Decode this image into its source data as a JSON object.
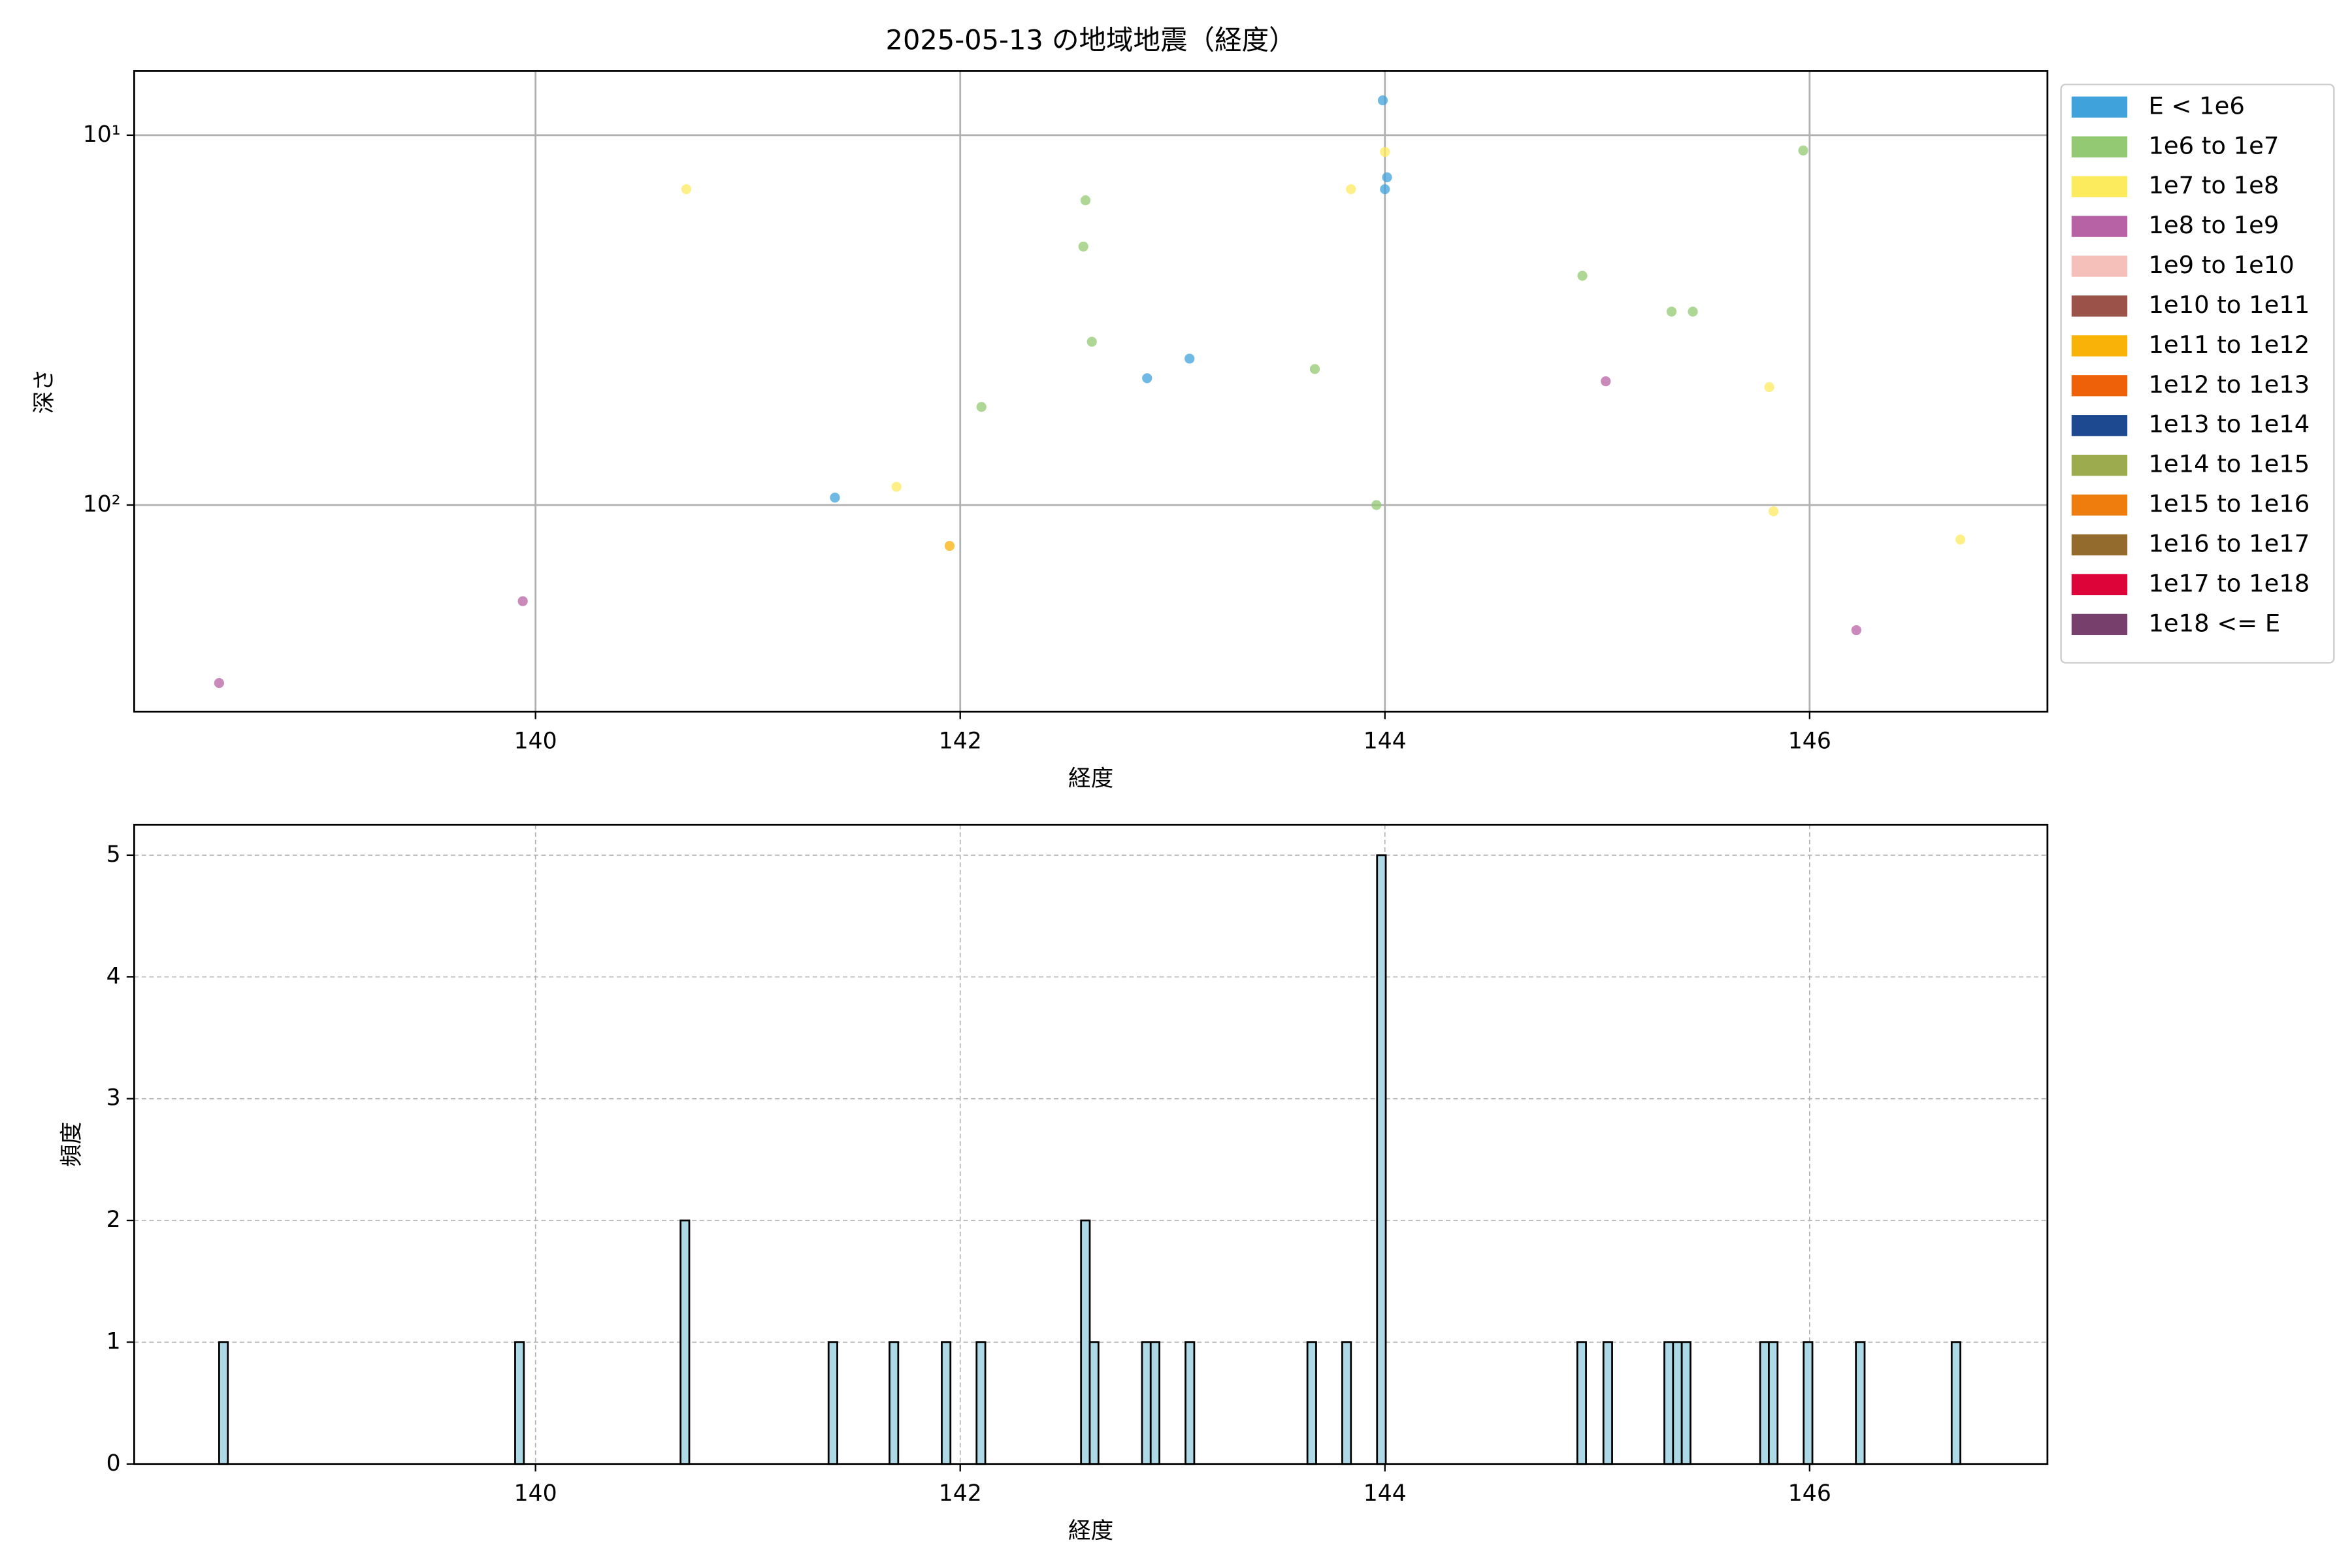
{
  "chart_data": [
    {
      "type": "scatter",
      "title": "2025-05-13 の地域地震（経度）",
      "xlabel": "経度",
      "ylabel": "深さ",
      "xlim": [
        138.11,
        147.12
      ],
      "ylim": [
        6.7,
        362
      ],
      "log_y": true,
      "y_inverted": true,
      "xticks": [
        140,
        142,
        144,
        146
      ],
      "yticks": [
        {
          "value": 10,
          "label": "10¹"
        },
        {
          "value": 100,
          "label": "10²"
        }
      ],
      "grid": true,
      "legend": "outside right",
      "series": [
        {
          "name": "E < 1e6",
          "color": "#3fa2db",
          "x": [
            141.41,
            142.88,
            143.08,
            143.99,
            144.01,
            144.0
          ],
          "values": [
            95.5,
            45.4,
            40.2,
            8.05,
            13.0,
            14.0
          ]
        },
        {
          "name": "1e6 to 1e7",
          "color": "#93c972",
          "x": [
            142.1,
            142.59,
            142.58,
            142.62,
            143.67,
            143.96,
            144.93,
            145.35,
            145.45,
            145.97
          ],
          "values": [
            54.3,
            15.0,
            20.0,
            36.2,
            42.9,
            100,
            24.0,
            30.0,
            30.0,
            11.0
          ]
        },
        {
          "name": "1e7 to 1e8",
          "color": "#fdeb5e",
          "x": [
            140.71,
            141.7,
            143.84,
            144.0,
            145.81,
            145.83,
            146.71
          ],
          "values": [
            14.0,
            89.3,
            14.0,
            11.1,
            48.0,
            104,
            124
          ]
        },
        {
          "name": "1e8 to 1e9",
          "color": "#b762a4",
          "x": [
            138.51,
            139.94,
            145.04,
            146.22
          ],
          "values": [
            303,
            182,
            46.3,
            218
          ]
        },
        {
          "name": "1e9 to 1e10",
          "color": "#f5c0b9",
          "x": [],
          "values": []
        },
        {
          "name": "1e10 to 1e11",
          "color": "#9a5249",
          "x": [],
          "values": []
        },
        {
          "name": "1e11 to 1e12",
          "color": "#f8b208",
          "x": [
            141.95
          ],
          "values": [
            129
          ]
        },
        {
          "name": "1e12 to 1e13",
          "color": "#ee6108",
          "x": [],
          "values": []
        },
        {
          "name": "1e13 to 1e14",
          "color": "#1c4990",
          "x": [],
          "values": []
        },
        {
          "name": "1e14 to 1e15",
          "color": "#9bab4e",
          "x": [],
          "values": []
        },
        {
          "name": "1e15 to 1e16",
          "color": "#ee7d0d",
          "x": [],
          "values": []
        },
        {
          "name": "1e16 to 1e17",
          "color": "#936b2c",
          "x": [],
          "values": []
        },
        {
          "name": "1e17 to 1e18",
          "color": "#dc0439",
          "x": [],
          "values": []
        },
        {
          "name": "1e18 <= E",
          "color": "#773f6c",
          "x": [],
          "values": []
        }
      ]
    },
    {
      "type": "histogram",
      "xlabel": "経度",
      "ylabel": "頻度",
      "xlim": [
        138.11,
        147.12
      ],
      "ylim": [
        0,
        5.25
      ],
      "xticks": [
        140,
        142,
        144,
        146
      ],
      "yticks": [
        0,
        1,
        2,
        3,
        4,
        5
      ],
      "grid": true,
      "color": "#add8e6",
      "edgecolor": "#000000",
      "bins": [
        138.51,
        138.551,
        139.904,
        139.945,
        140.683,
        140.724,
        141.38,
        141.421,
        141.667,
        141.708,
        141.913,
        141.954,
        142.077,
        142.118,
        142.569,
        142.61,
        142.651,
        142.856,
        142.897,
        142.938,
        143.061,
        143.102,
        143.635,
        143.676,
        143.799,
        143.84,
        143.963,
        144.004,
        144.906,
        144.947,
        145.029,
        145.07,
        145.316,
        145.357,
        145.398,
        145.439,
        145.767,
        145.808,
        145.849,
        145.972,
        146.013,
        146.218,
        146.259,
        146.669,
        146.71
      ],
      "counts": [
        1,
        0,
        1,
        0,
        2,
        0,
        1,
        0,
        1,
        0,
        1,
        0,
        1,
        0,
        2,
        1,
        0,
        1,
        1,
        0,
        1,
        0,
        1,
        0,
        1,
        0,
        5,
        0,
        1,
        0,
        1,
        0,
        1,
        1,
        1,
        0,
        1,
        1,
        0,
        1,
        0,
        1,
        0,
        1
      ]
    }
  ]
}
